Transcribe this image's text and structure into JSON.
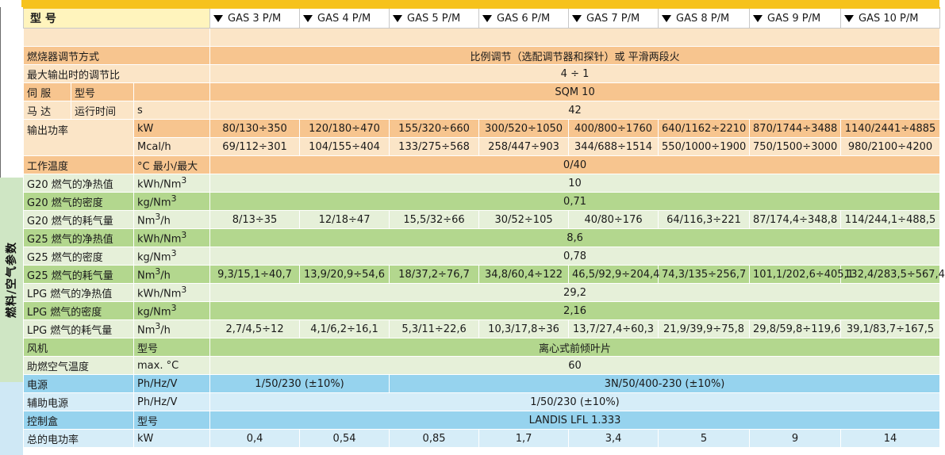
{
  "header": {
    "label": "型 号",
    "models": [
      "GAS 3 P/M",
      "GAS 4 P/M",
      "GAS 5 P/M",
      "GAS 6 P/M",
      "GAS 7 P/M",
      "GAS 8 P/M",
      "GAS 9 P/M",
      "GAS 10 P/M"
    ]
  },
  "side_label": "燃料/空气参数",
  "rows": {
    "regulation": {
      "label": "燃烧器调节方式",
      "value": "比例调节（选配调节器和探针）或 平滑两段火"
    },
    "turndown": {
      "label": "最大输出时的调节比",
      "value": "4 ÷ 1"
    },
    "servo_model": {
      "label1": "伺 服",
      "label2": "型号",
      "value": "SQM 10"
    },
    "servo_time": {
      "label1": "马 达",
      "label2": "运行时间",
      "unit": "s",
      "value": "42"
    },
    "power_kw": {
      "label": "输出功率",
      "unit": "kW",
      "values": [
        "80/130÷350",
        "120/180÷470",
        "155/320÷660",
        "300/520÷1050",
        "400/800÷1760",
        "640/1162÷2210",
        "870/1744÷3488",
        "1140/2441÷4885"
      ]
    },
    "power_mcal": {
      "unit": "Mcal/h",
      "values": [
        "69/112÷301",
        "104/155÷404",
        "133/275÷568",
        "258/447÷903",
        "344/688÷1514",
        "550/1000÷1900",
        "750/1500÷3000",
        "980/2100÷4200"
      ]
    },
    "work_temp": {
      "label": "工作温度",
      "unit": "°C 最小/最大",
      "value": "0/40"
    },
    "g20_ncv": {
      "label": "G20 燃气的净热值",
      "unit_base": "kWh/Nm",
      "unit_sup": "3",
      "value": "10"
    },
    "g20_density": {
      "label": "G20 燃气的密度",
      "unit_base": "kg/Nm",
      "unit_sup": "3",
      "value": "0,71"
    },
    "g20_flow": {
      "label": "G20 燃气的耗气量",
      "unit_base": "Nm",
      "unit_sup": "3",
      "unit_tail": "/h",
      "values": [
        "8/13÷35",
        "12/18÷47",
        "15,5/32÷66",
        "30/52÷105",
        "40/80÷176",
        "64/116,3÷221",
        "87/174,4÷348,8",
        "114/244,1÷488,5"
      ]
    },
    "g25_ncv": {
      "label": "G25 燃气的净热值",
      "unit_base": "kWh/Nm",
      "unit_sup": "3",
      "value": "8,6"
    },
    "g25_density": {
      "label": "G25 燃气的密度",
      "unit_base": "kg/Nm",
      "unit_sup": "3",
      "value": "0,78"
    },
    "g25_flow": {
      "label": "G25 燃气的耗气量",
      "unit_base": "Nm",
      "unit_sup": "3",
      "unit_tail": "/h",
      "values": [
        "9,3/15,1÷40,7",
        "13,9/20,9÷54,6",
        "18/37,2÷76,7",
        "34,8/60,4÷122",
        "46,5/92,9÷204,4",
        "74,3/135÷256,7",
        "101,1/202,6÷405,1",
        "132,4/283,5÷567,4"
      ]
    },
    "lpg_ncv": {
      "label": "LPG 燃气的净热值",
      "unit_base": "kWh/Nm",
      "unit_sup": "3",
      "value": "29,2"
    },
    "lpg_density": {
      "label": "LPG 燃气的密度",
      "unit_base": "kg/Nm",
      "unit_sup": "3",
      "value": "2,16"
    },
    "lpg_flow": {
      "label": "LPG 燃气的耗气量",
      "unit_base": "Nm",
      "unit_sup": "3",
      "unit_tail": "/h",
      "values": [
        "2,7/4,5÷12",
        "4,1/6,2÷16,1",
        "5,3/11÷22,6",
        "10,3/17,8÷36",
        "13,7/27,4÷60,3",
        "21,9/39,9÷75,8",
        "29,8/59,8÷119,6",
        "39,1/83,7÷167,5"
      ]
    },
    "fan": {
      "label": "风机",
      "unit": "型号",
      "value": "离心式前倾叶片"
    },
    "air_temp": {
      "label": "助燃空气温度",
      "unit": "max. °C",
      "value": "60"
    },
    "power_supply": {
      "label": "电源",
      "unit": "Ph/Hz/V",
      "value_small": "1/50/230 (±10%)",
      "value_large": "3N/50/400-230 (±10%)"
    },
    "aux_supply": {
      "label": "辅助电源",
      "unit": "Ph/Hz/V",
      "value": "1/50/230 (±10%)"
    },
    "control_box": {
      "label": "控制盒",
      "unit": "型号",
      "value": "LANDIS LFL 1.333"
    },
    "elec_power": {
      "label": "总的电功率",
      "unit": "kW",
      "values": [
        "0,4",
        "0,54",
        "0,85",
        "1,7",
        "3,4",
        "5",
        "9",
        "14"
      ]
    }
  },
  "colors": {
    "top_bar": "#f6c21d",
    "orange_dark": "#f7c58f",
    "orange_light": "#fbe5c7",
    "green_dark": "#b3d78e",
    "green_light": "#e6f0d9",
    "blue_dark": "#96d3ee",
    "blue_light": "#d6edf8"
  }
}
